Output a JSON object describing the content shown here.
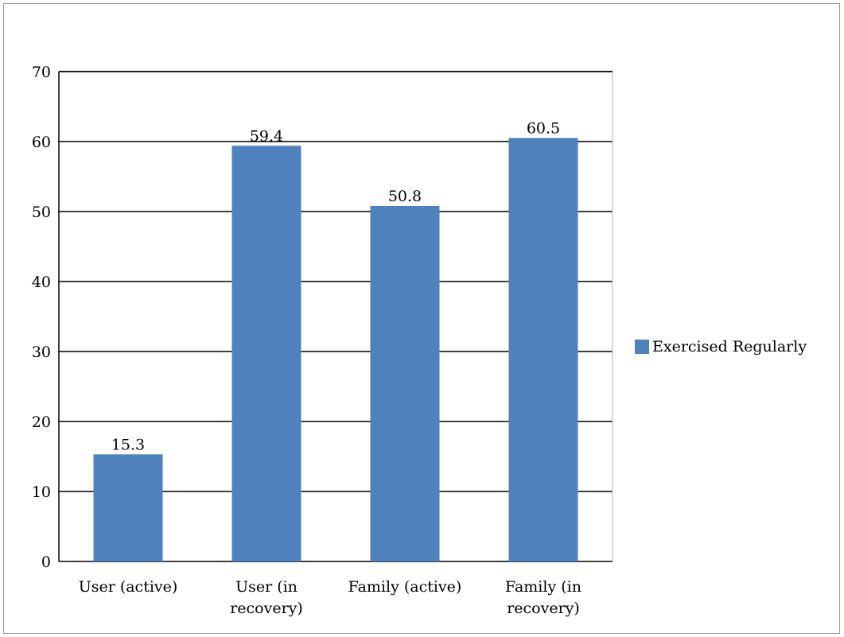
{
  "chart_data": {
    "type": "bar",
    "categories": [
      [
        "User (active)"
      ],
      [
        "User (in",
        "recovery)"
      ],
      [
        "Family (active)"
      ],
      [
        "Family (in",
        "recovery)"
      ]
    ],
    "series": [
      {
        "name": "Exercised Regularly",
        "values": [
          15.3,
          59.4,
          50.8,
          60.5
        ],
        "color": "#4f81bd"
      }
    ],
    "data_labels": [
      "15.3",
      "59.4",
      "50.8",
      "60.5"
    ],
    "ylim": [
      0,
      70
    ],
    "yticks": [
      0,
      10,
      20,
      30,
      40,
      50,
      60,
      70
    ],
    "grid": true,
    "legend_position": "right",
    "title": "",
    "xlabel": "",
    "ylabel": ""
  },
  "legend": {
    "label": "Exercised Regularly",
    "color": "#4f81bd"
  }
}
